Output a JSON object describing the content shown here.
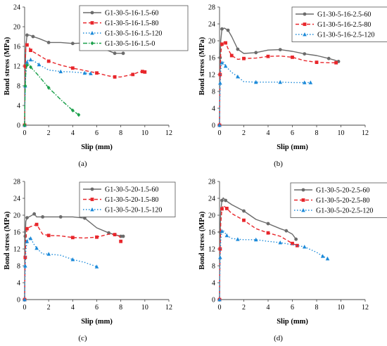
{
  "figure": {
    "panels": [
      {
        "label": "(a)"
      },
      {
        "label": "(b)"
      },
      {
        "label": "(c)"
      },
      {
        "label": "(d)"
      }
    ]
  },
  "chart_data": [
    {
      "type": "line",
      "xlabel": "Slip (mm)",
      "ylabel": "Bond stress (MPa)",
      "xlim": [
        0,
        12
      ],
      "ylim": [
        0,
        24
      ],
      "xticks": [
        0,
        2,
        4,
        6,
        8,
        10,
        12
      ],
      "yticks": [
        0,
        4,
        8,
        12,
        16,
        20,
        24
      ],
      "legend_position": "top-right",
      "series": [
        {
          "name": "G1-30-5-16-1.5-60",
          "color": "#6b6b6b",
          "marker": "circle",
          "dash": "solid",
          "x": [
            0,
            0.02,
            0.05,
            0.1,
            0.2,
            0.4,
            0.7,
            1.2,
            2.0,
            3.0,
            4.0,
            5.0,
            6.0,
            7.0,
            7.5,
            8.0,
            8.2
          ],
          "y": [
            0,
            5,
            12,
            16,
            18.3,
            18.3,
            18.0,
            17.6,
            16.8,
            16.8,
            16.6,
            16.7,
            16.0,
            15.1,
            14.6,
            14.6,
            14.6
          ]
        },
        {
          "name": "G1-30-5-16-1.5-80",
          "color": "#e8262b",
          "marker": "square",
          "dash": "dash",
          "x": [
            0,
            0.02,
            0.05,
            0.1,
            0.2,
            0.35,
            0.5,
            1.0,
            2.0,
            3.0,
            4.0,
            5.0,
            6.0,
            7.0,
            7.5,
            8.0,
            9.0,
            9.5,
            9.8,
            10.0
          ],
          "y": [
            0,
            6,
            12,
            16,
            16.3,
            16,
            15.2,
            14.5,
            13.0,
            12.2,
            11.6,
            11.1,
            10.6,
            10.0,
            9.8,
            9.8,
            10.3,
            10.8,
            10.9,
            10.8
          ]
        },
        {
          "name": "G1-30-5-16-1.5-120",
          "color": "#1c8ad9",
          "marker": "triangle",
          "dash": "dot",
          "x": [
            0,
            0.02,
            0.05,
            0.1,
            0.2,
            0.3,
            0.5,
            0.8,
            1.2,
            2.0,
            3.0,
            4.0,
            5.0,
            5.5
          ],
          "y": [
            0,
            4,
            8,
            10.5,
            12.8,
            13.3,
            13.3,
            13.0,
            12.3,
            11.2,
            10.9,
            10.8,
            10.6,
            10.5
          ]
        },
        {
          "name": "G1-30-5-16-1.5-0",
          "color": "#1ba04b",
          "marker": "diamond",
          "dash": "dashdot",
          "x": [
            0,
            0.02,
            0.05,
            0.1,
            0.2,
            0.3,
            0.5,
            1.0,
            2.0,
            3.0,
            4.0,
            4.5
          ],
          "y": [
            0,
            4,
            8,
            11,
            12.2,
            12.4,
            11.8,
            10.5,
            7.6,
            5.2,
            3.0,
            2.1
          ]
        }
      ]
    },
    {
      "type": "line",
      "xlabel": "Slip (mm)",
      "ylabel": "Bond stress (MPa)",
      "xlim": [
        0,
        12
      ],
      "ylim": [
        0,
        28
      ],
      "xticks": [
        0,
        2,
        4,
        6,
        8,
        10,
        12
      ],
      "yticks": [
        0,
        4,
        8,
        12,
        16,
        20,
        24,
        28
      ],
      "legend_position": "top-right",
      "series": [
        {
          "name": "G1-30-5-16-2.5-60",
          "color": "#6b6b6b",
          "marker": "circle",
          "dash": "solid",
          "x": [
            0,
            0.02,
            0.05,
            0.1,
            0.2,
            0.4,
            0.7,
            1.0,
            1.5,
            2.0,
            3.0,
            4.0,
            5.0,
            6.0,
            7.0,
            8.0,
            9.0,
            9.5,
            9.8
          ],
          "y": [
            0,
            8,
            16,
            20,
            22.8,
            23.0,
            22.5,
            21.0,
            18.0,
            17.0,
            17.2,
            17.8,
            17.9,
            17.5,
            16.9,
            16.5,
            15.8,
            15.4,
            15.1
          ]
        },
        {
          "name": "G1-30-5-16-2.5-80",
          "color": "#e8262b",
          "marker": "square",
          "dash": "dash",
          "x": [
            0,
            0.02,
            0.05,
            0.1,
            0.2,
            0.3,
            0.5,
            0.8,
            1.0,
            1.5,
            2.0,
            3.0,
            4.0,
            5.0,
            6.0,
            7.0,
            8.0,
            9.0,
            9.6
          ],
          "y": [
            0,
            6,
            12,
            17,
            19.2,
            19.8,
            19.5,
            17.5,
            16.5,
            15.6,
            15.8,
            15.9,
            16.3,
            16.4,
            16.1,
            15.3,
            14.9,
            14.8,
            14.8
          ]
        },
        {
          "name": "G1-30-5-16-2.5-120",
          "color": "#1c8ad9",
          "marker": "triangle",
          "dash": "dot",
          "x": [
            0,
            0.02,
            0.05,
            0.1,
            0.2,
            0.3,
            0.5,
            1.0,
            1.5,
            2.0,
            3.0,
            4.0,
            5.0,
            6.0,
            7.0,
            7.5
          ],
          "y": [
            0,
            5,
            10,
            13,
            14.8,
            15.1,
            14.0,
            12.5,
            11.5,
            10.3,
            10.2,
            10.2,
            10.2,
            10.1,
            10.1,
            10.1
          ]
        }
      ]
    },
    {
      "type": "line",
      "xlabel": "Slip (mm)",
      "ylabel": "Bond stress (MPa)",
      "xlim": [
        0,
        12
      ],
      "ylim": [
        0,
        28
      ],
      "xticks": [
        0,
        2,
        4,
        6,
        8,
        10,
        12
      ],
      "yticks": [
        0,
        4,
        8,
        12,
        16,
        20,
        24,
        28
      ],
      "legend_position": "top-right",
      "series": [
        {
          "name": "G1-30-5-20-1.5-60",
          "color": "#6b6b6b",
          "marker": "circle",
          "dash": "solid",
          "x": [
            0,
            0.02,
            0.05,
            0.1,
            0.2,
            0.5,
            0.8,
            1.0,
            1.5,
            2.0,
            3.0,
            4.0,
            5.0,
            6.0,
            7.0,
            7.5,
            8.0,
            8.2
          ],
          "y": [
            0,
            8,
            15,
            18.5,
            19.4,
            19.8,
            20.3,
            19.6,
            19.6,
            19.6,
            19.6,
            19.6,
            19.3,
            17.0,
            15.8,
            15.4,
            15.0,
            15.0
          ]
        },
        {
          "name": "G1-30-5-20-1.5-80",
          "color": "#e8262b",
          "marker": "square",
          "dash": "dash",
          "x": [
            0,
            0.02,
            0.05,
            0.1,
            0.2,
            0.5,
            1.0,
            1.5,
            2.0,
            3.0,
            4.0,
            5.0,
            6.0,
            7.0,
            7.5,
            7.9,
            8.0
          ],
          "y": [
            0,
            5,
            10,
            14.5,
            16.8,
            17.3,
            17.8,
            15.5,
            15.2,
            15.1,
            14.7,
            14.6,
            14.8,
            15.5,
            15.4,
            15.0,
            13.8
          ]
        },
        {
          "name": "G1-30-5-20-1.5-120",
          "color": "#1c8ad9",
          "marker": "triangle",
          "dash": "dot",
          "x": [
            0,
            0.02,
            0.05,
            0.1,
            0.2,
            0.3,
            0.5,
            0.8,
            1.0,
            1.5,
            2.0,
            3.0,
            4.0,
            5.0,
            6.0
          ],
          "y": [
            0,
            4,
            8,
            11.5,
            13.8,
            14.5,
            14.5,
            13.0,
            12.2,
            10.8,
            10.8,
            10.5,
            9.5,
            8.8,
            7.8
          ]
        }
      ]
    },
    {
      "type": "line",
      "xlabel": "Slip (mm)",
      "ylabel": "Bond stress (MPa)",
      "xlim": [
        0,
        12
      ],
      "ylim": [
        0,
        28
      ],
      "xticks": [
        0,
        2,
        4,
        6,
        8,
        10,
        12
      ],
      "yticks": [
        0,
        4,
        8,
        12,
        16,
        20,
        24,
        28
      ],
      "legend_position": "top-right",
      "series": [
        {
          "name": "G1-30-5-20-2.5-60",
          "color": "#6b6b6b",
          "marker": "circle",
          "dash": "solid",
          "x": [
            0,
            0.02,
            0.05,
            0.1,
            0.2,
            0.3,
            0.5,
            1.0,
            2.0,
            3.0,
            4.0,
            5.0,
            5.5,
            6.0,
            6.3
          ],
          "y": [
            0,
            8,
            16,
            21,
            23.5,
            24.1,
            23.5,
            22.5,
            21.0,
            19.0,
            18.0,
            16.8,
            16.3,
            15.5,
            14.3
          ]
        },
        {
          "name": "G1-30-5-20-2.5-80",
          "color": "#e8262b",
          "marker": "square",
          "dash": "dash",
          "x": [
            0,
            0.02,
            0.05,
            0.1,
            0.2,
            0.3,
            0.6,
            1.0,
            2.0,
            3.0,
            4.0,
            5.0,
            6.0,
            6.4
          ],
          "y": [
            0,
            6,
            12,
            18,
            21.5,
            22.3,
            21.6,
            20.4,
            18.8,
            16.8,
            15.8,
            15.0,
            13.3,
            12.8
          ]
        },
        {
          "name": "G1-30-5-20-2.5-120",
          "color": "#1c8ad9",
          "marker": "triangle",
          "dash": "dot",
          "x": [
            0,
            0.02,
            0.05,
            0.1,
            0.2,
            0.3,
            0.6,
            1.0,
            1.5,
            2.0,
            3.0,
            4.0,
            5.0,
            6.0,
            7.0,
            8.0,
            8.5,
            8.9
          ],
          "y": [
            0,
            5,
            10,
            14,
            16.2,
            16.4,
            15.2,
            14.5,
            14.3,
            14.2,
            14.2,
            13.8,
            13.5,
            13.0,
            12.5,
            11.2,
            10.3,
            9.7
          ]
        }
      ]
    }
  ]
}
